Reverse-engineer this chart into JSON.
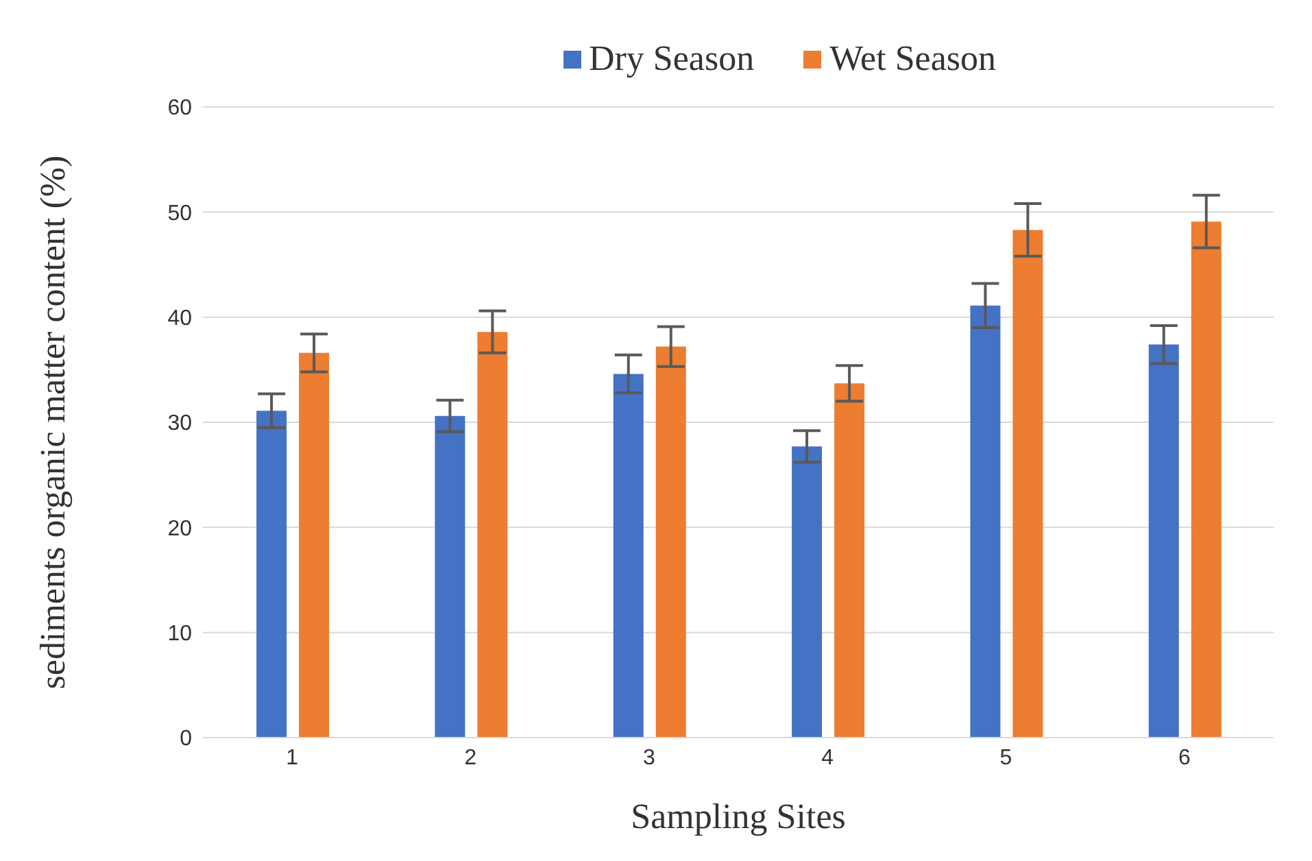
{
  "chart_data": {
    "type": "bar",
    "xlabel": "Sampling Sites",
    "ylabel": "sediments organic matter content (%)",
    "categories": [
      "1",
      "2",
      "3",
      "4",
      "5",
      "6"
    ],
    "series": [
      {
        "name": "Dry Season",
        "color": "#4472c4",
        "values": [
          31.1,
          30.6,
          34.6,
          27.7,
          41.1,
          37.4
        ],
        "errors": [
          1.6,
          1.5,
          1.8,
          1.5,
          2.1,
          1.8
        ]
      },
      {
        "name": "Wet Season",
        "color": "#ed7d31",
        "values": [
          36.6,
          38.6,
          37.2,
          33.7,
          48.3,
          49.1
        ],
        "errors": [
          1.8,
          2.0,
          1.9,
          1.7,
          2.5,
          2.5
        ]
      }
    ],
    "ylim": [
      0,
      60
    ],
    "yticks": [
      0,
      10,
      20,
      30,
      40,
      50,
      60
    ],
    "grid": "y",
    "legend": "top"
  }
}
